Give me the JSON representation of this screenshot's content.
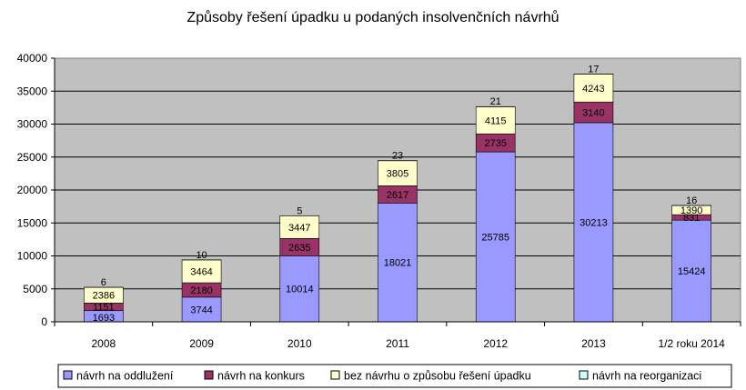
{
  "chart_data": {
    "type": "bar",
    "stacked": true,
    "title": "Způsoby řešení úpadku u podaných insolvenčních návrhů",
    "xlabel": "",
    "ylabel": "",
    "categories": [
      "2008",
      "2009",
      "2010",
      "2011",
      "2012",
      "2013",
      "1/2 roku 2014"
    ],
    "ylim": [
      0,
      40000
    ],
    "yticks": [
      0,
      5000,
      10000,
      15000,
      20000,
      25000,
      30000,
      35000,
      40000
    ],
    "grid": true,
    "legend_position": "bottom",
    "series": [
      {
        "name": "návrh na oddlužení",
        "color": "#9999ff",
        "values": [
          1693,
          3744,
          10014,
          18021,
          25785,
          30213,
          15424
        ]
      },
      {
        "name": "návrh na konkurs",
        "color": "#993366",
        "values": [
          1151,
          2180,
          2635,
          2617,
          2735,
          3140,
          831
        ]
      },
      {
        "name": "bez návrhu o způsobu řešení úpadku",
        "color": "#ffffcc",
        "values": [
          2386,
          3464,
          3447,
          3805,
          4115,
          4243,
          1390
        ]
      },
      {
        "name": "návrh na reorganizaci",
        "color": "#ccffff",
        "values": [
          6,
          10,
          5,
          23,
          21,
          17,
          16
        ]
      }
    ]
  }
}
